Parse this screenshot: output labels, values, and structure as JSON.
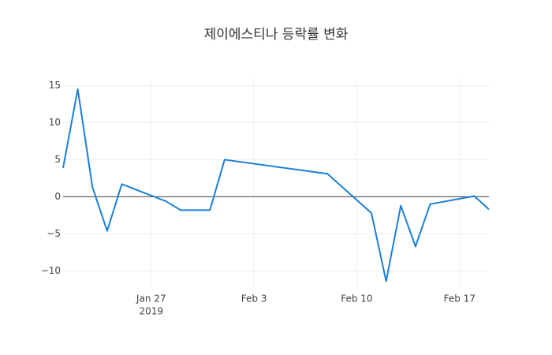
{
  "chart_data": {
    "type": "line",
    "title": "제이에스티나 등락률 변화",
    "x": [
      "2019-01-21",
      "2019-01-22",
      "2019-01-23",
      "2019-01-24",
      "2019-01-25",
      "2019-01-28",
      "2019-01-29",
      "2019-01-31",
      "2019-02-01",
      "2019-02-08",
      "2019-02-11",
      "2019-02-12",
      "2019-02-13",
      "2019-02-14",
      "2019-02-15",
      "2019-02-18",
      "2019-02-19"
    ],
    "values": [
      3.9,
      14.5,
      1.3,
      -4.6,
      1.7,
      -0.6,
      -1.8,
      -1.8,
      5.0,
      3.1,
      -2.2,
      -11.4,
      -1.2,
      -6.7,
      -1.0,
      0.1,
      -1.7
    ],
    "color": "#1a7fd6",
    "xlim": [
      "2019-01-21",
      "2019-02-19"
    ],
    "xticks": [
      {
        "value": "2019-01-27",
        "label": "Jan 27",
        "year": "2019"
      },
      {
        "value": "2019-02-03",
        "label": "Feb 3"
      },
      {
        "value": "2019-02-10",
        "label": "Feb 10"
      },
      {
        "value": "2019-02-17",
        "label": "Feb 17"
      }
    ],
    "ylim": [
      -12.3,
      15.9
    ],
    "yticks": [
      {
        "value": -10,
        "label": "−10"
      },
      {
        "value": -5,
        "label": "−5"
      },
      0,
      5,
      10,
      15
    ],
    "grid": true
  }
}
